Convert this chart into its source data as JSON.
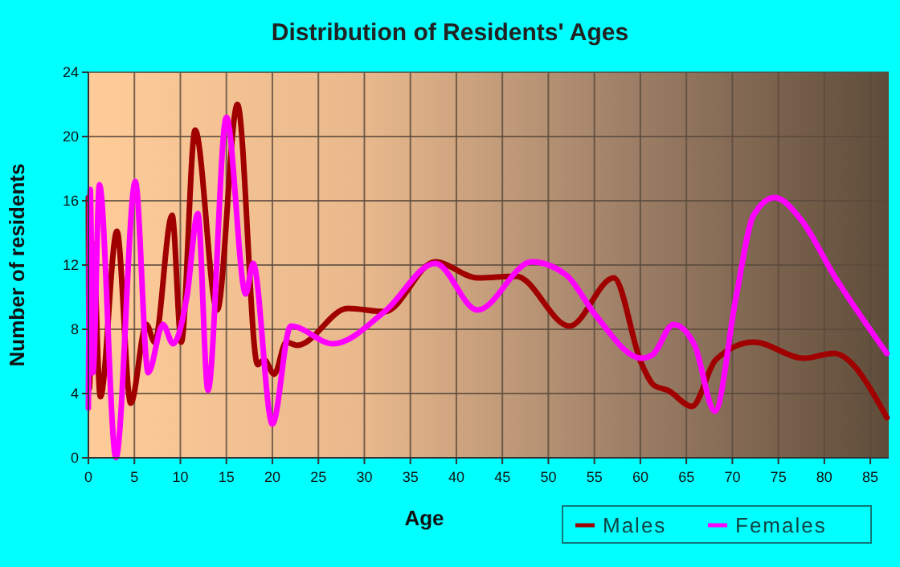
{
  "chart_data": {
    "type": "line",
    "title": "Distribution of Residents' Ages",
    "xlabel": "Age",
    "ylabel": "Number of residents",
    "xlim": [
      0,
      87
    ],
    "xticks": [
      0,
      5,
      10,
      15,
      20,
      25,
      30,
      35,
      40,
      45,
      50,
      55,
      60,
      65,
      70,
      75,
      80,
      85
    ],
    "ylim": [
      0,
      24
    ],
    "yticks": [
      0,
      4,
      8,
      12,
      16,
      20,
      24
    ],
    "grid": true,
    "legend": "bottom right",
    "marker": "none",
    "line_style": "solid",
    "series": [
      {
        "name": "Males",
        "color": "#a00000",
        "x": [
          0,
          0.1,
          0.5,
          1.3,
          3.1,
          4.6,
          6.3,
          7.2,
          9.1,
          10.1,
          11.6,
          14.0,
          16.2,
          18.4,
          19.1,
          20.2,
          21.5,
          22.7,
          28.2,
          32.2,
          37.7,
          42.3,
          46.5,
          52.3,
          57.1,
          60.1,
          61.5,
          63.0,
          65.6,
          68.2,
          72.3,
          77.8,
          81.0,
          86.8
        ],
        "values": [
          16.2,
          4.3,
          13.3,
          3.8,
          14.1,
          3.4,
          8.3,
          7.2,
          15.1,
          7.2,
          20.4,
          9.2,
          22,
          5.8,
          6.1,
          5.2,
          7.2,
          7.0,
          9.3,
          9.1,
          12.2,
          11.2,
          11.3,
          8.2,
          11.2,
          5.9,
          4.5,
          4.2,
          3.2,
          6.1,
          7.2,
          6.2,
          6.5,
          2.5
        ]
      },
      {
        "name": "Females",
        "color": "#ff00ff",
        "x": [
          0,
          0.2,
          0.5,
          1.2,
          3.0,
          5.1,
          6.5,
          8.1,
          9.2,
          10.7,
          11.9,
          13.0,
          15.0,
          17.1,
          17.9,
          20.0,
          22.0,
          26.6,
          32.2,
          37.7,
          42.3,
          48.2,
          51.9,
          55.1,
          60.1,
          61.3,
          63.6,
          65.9,
          68.1,
          70.4,
          72.3,
          74.6,
          77.5,
          81.0,
          86.8
        ],
        "values": [
          3.1,
          16.7,
          5.3,
          17,
          0,
          17.2,
          5.3,
          8.3,
          7.1,
          10.0,
          15.2,
          4.2,
          21.2,
          10.2,
          12.1,
          2.1,
          8.2,
          7.1,
          9.1,
          12.1,
          9.2,
          12.2,
          11.4,
          8.9,
          6.2,
          6.4,
          8.3,
          7.0,
          2.9,
          10,
          15.1,
          16.2,
          14.8,
          11.4,
          6.5
        ]
      }
    ]
  }
}
